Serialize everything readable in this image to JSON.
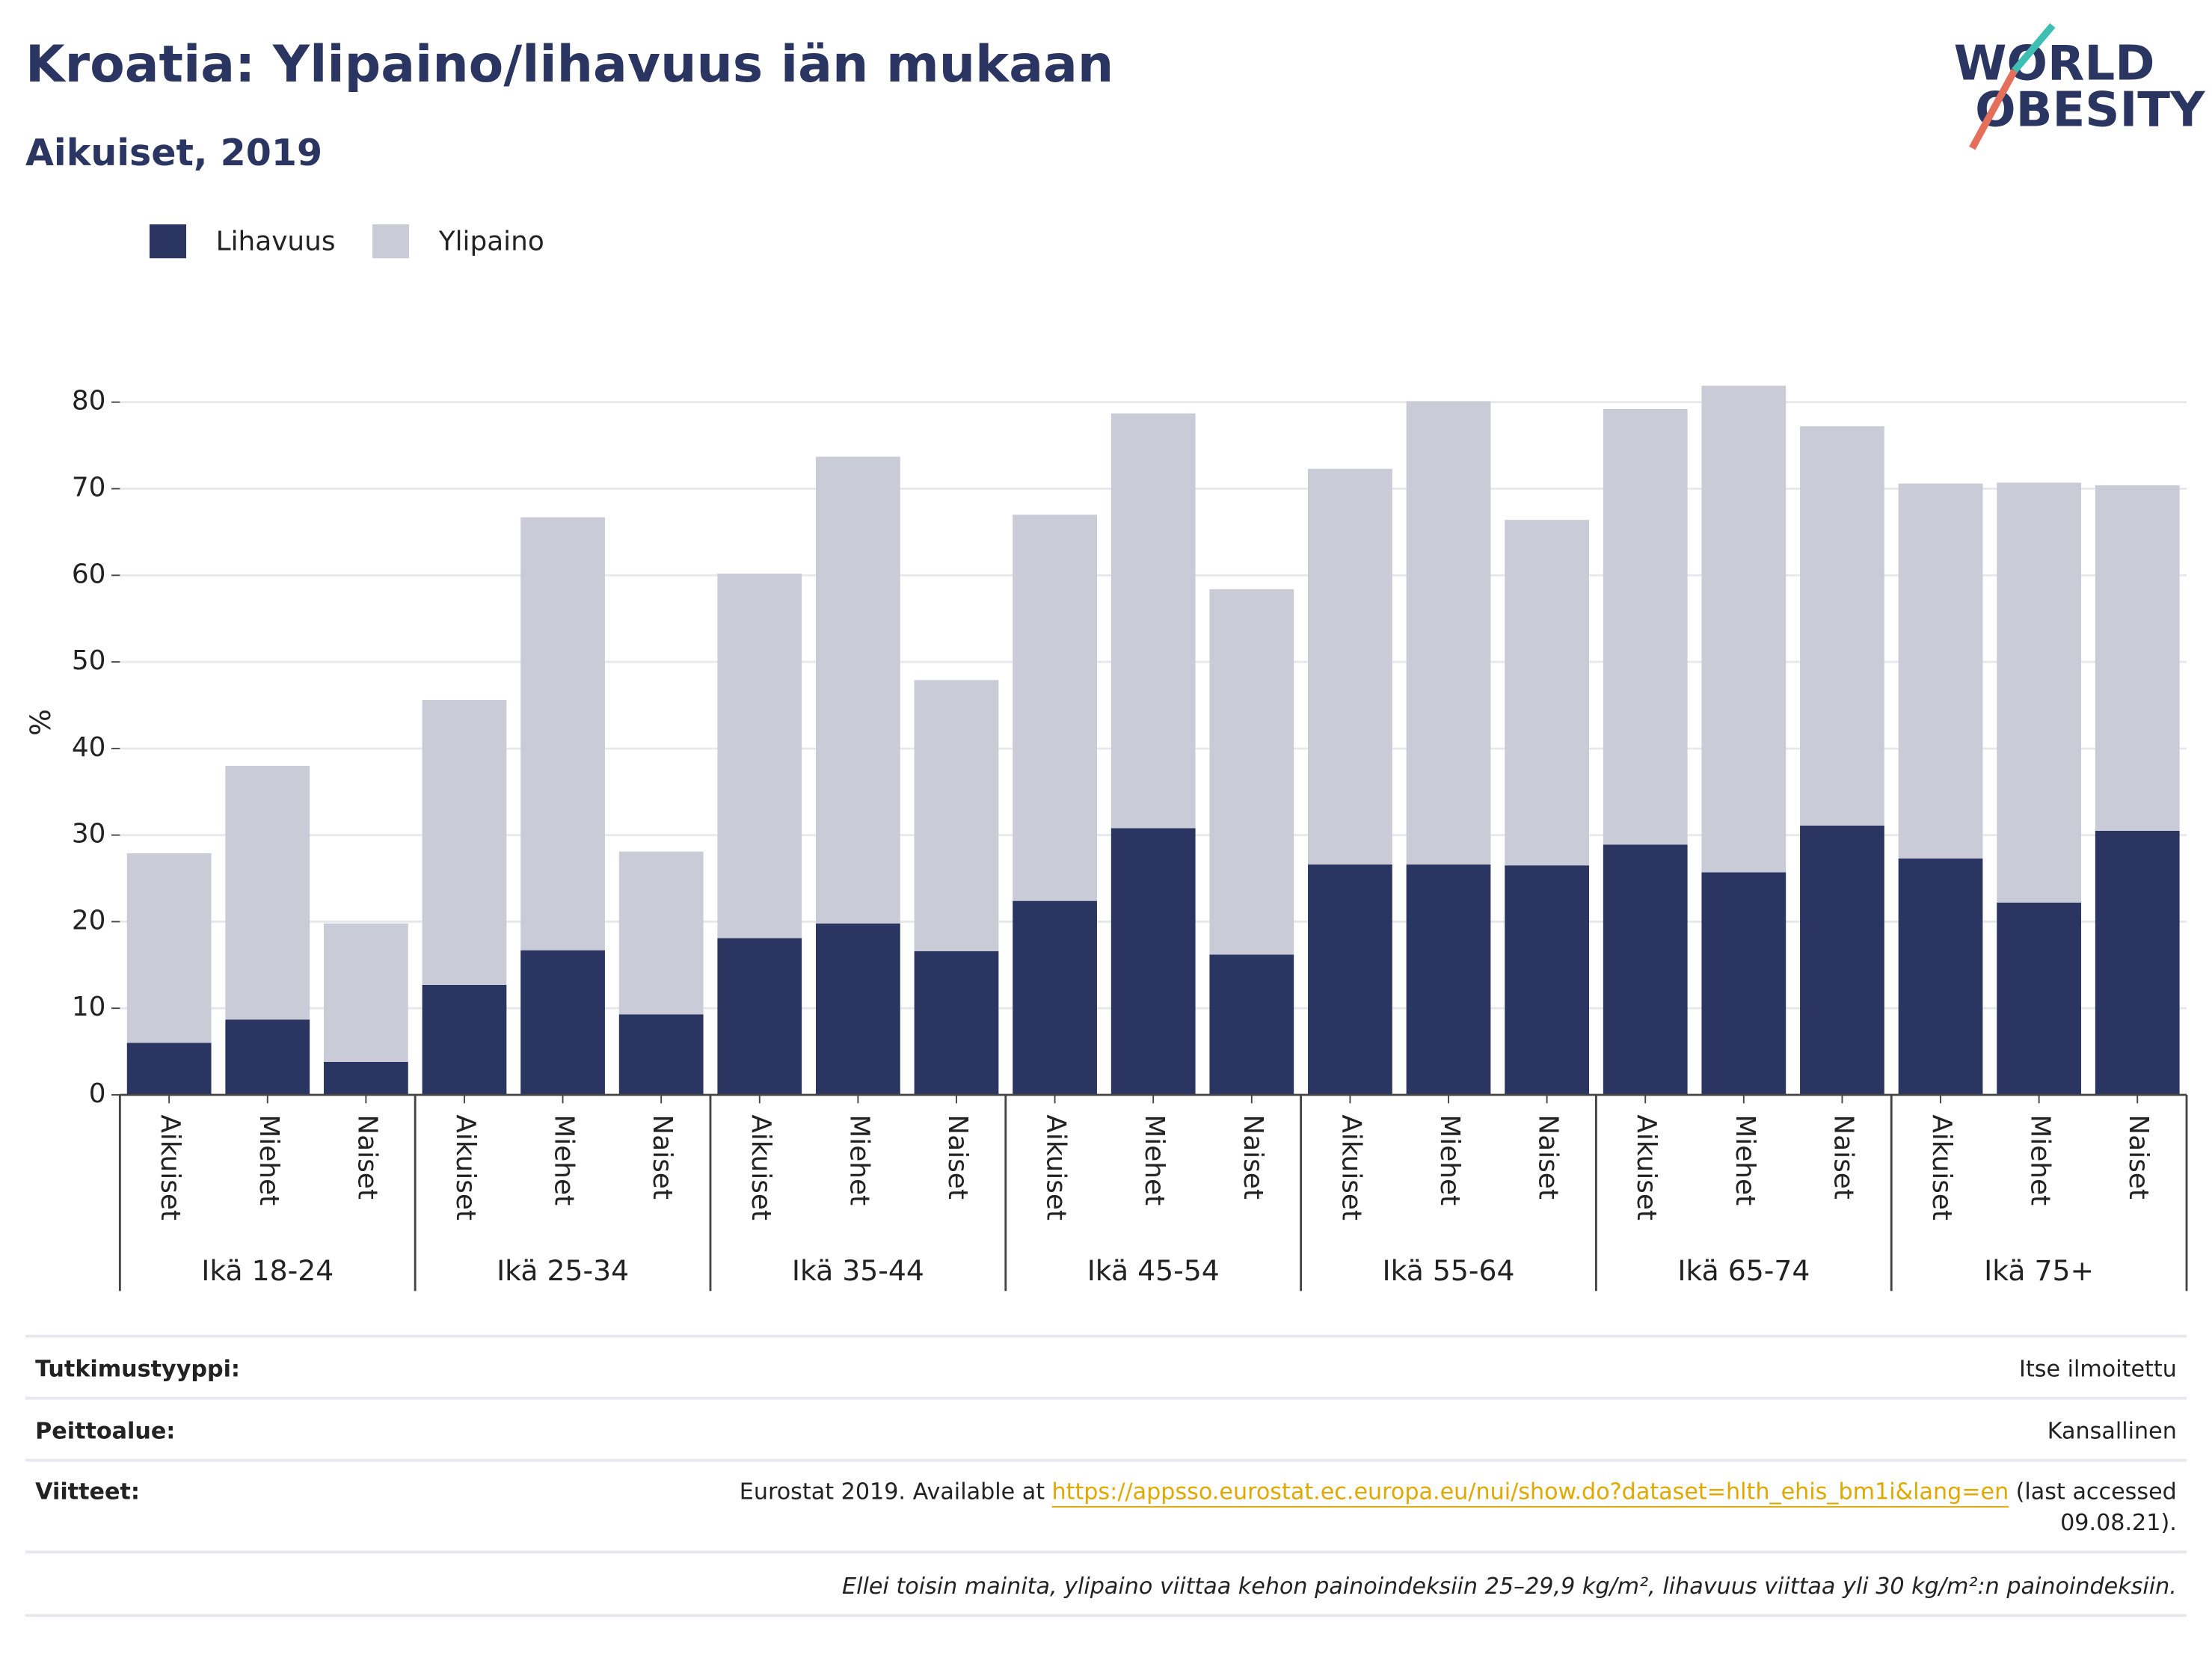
{
  "chart_data": {
    "type": "stacked-bar",
    "title": "Kroatia: Ylipaino/lihavuus iän mukaan",
    "subtitle": "Aikuiset, 2019",
    "logo": [
      "WORLD",
      "OBESITY"
    ],
    "y_label": "%",
    "categories": [
      "Aikuiset",
      "Miehet",
      "Naiset",
      "Aikuiset",
      "Miehet",
      "Naiset",
      "Aikuiset",
      "Miehet",
      "Naiset",
      "Aikuiset",
      "Miehet",
      "Naiset",
      "Aikuiset",
      "Miehet",
      "Naiset",
      "Aikuiset",
      "Miehet",
      "Naiset",
      "Aikuiset",
      "Miehet",
      "Naiset"
    ],
    "groups": [
      "Ikä 18-24",
      "Ikä 25-34",
      "Ikä 35-44",
      "Ikä 45-54",
      "Ikä 55-64",
      "Ikä 65-74",
      "Ikä 75+"
    ],
    "series": [
      {
        "name": "Lihavuus",
        "color": "#2a3561",
        "values": [
          6.0,
          8.7,
          3.8,
          12.7,
          16.7,
          9.3,
          18.1,
          19.8,
          16.6,
          22.4,
          30.8,
          16.2,
          26.6,
          26.6,
          26.5,
          28.9,
          25.7,
          31.1,
          27.3,
          22.2,
          30.5
        ]
      },
      {
        "name": "Ylipaino",
        "color": "#c9cbd6",
        "values": [
          21.9,
          29.3,
          16.0,
          32.9,
          50.0,
          18.8,
          42.1,
          53.9,
          31.3,
          44.6,
          47.9,
          42.2,
          45.7,
          53.5,
          39.9,
          50.3,
          56.2,
          46.1,
          43.3,
          48.5,
          39.9
        ]
      }
    ],
    "ylim": [
      0,
      90
    ],
    "yticks": [
      0,
      10,
      20,
      30,
      40,
      50,
      60,
      70,
      80
    ],
    "grid": true,
    "legend": "top-left"
  },
  "footer": {
    "rows": [
      {
        "label": "Tutkimustyyppi:",
        "value": "Itse ilmoitettu"
      },
      {
        "label": "Peittoalue:",
        "value": "Kansallinen"
      }
    ],
    "references": {
      "label": "Viitteet:",
      "text": "Eurostat 2019. Available at",
      "link": "https://appsso.eurostat.ec.europa.eu/nui/show.do?dataset=hlth_ehis_bm1i&lang=en",
      "after": [
        "(last accessed",
        "09.08.21)."
      ]
    },
    "note": "Ellei toisin mainita, ylipaino viittaa kehon painoindeksiin 25–29,9 kg/m², lihavuus viittaa yli 30 kg/m²:n painoindeksiin."
  }
}
